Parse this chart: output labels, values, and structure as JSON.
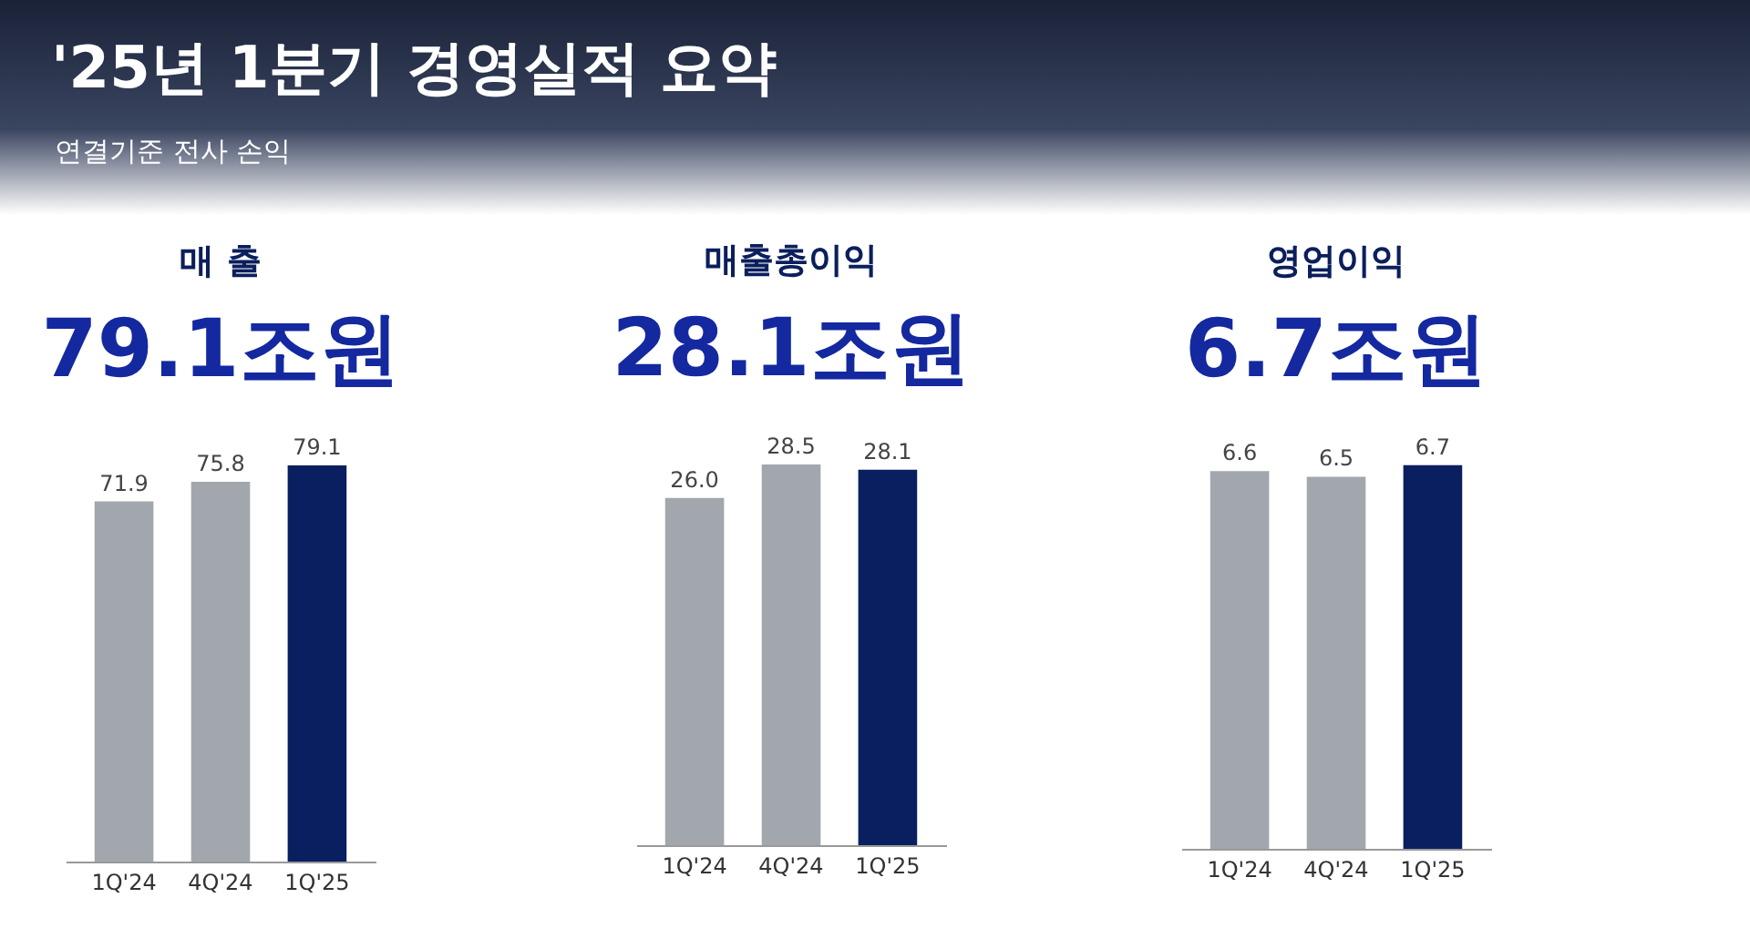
{
  "chart_data": [
    {
      "type": "other",
      "title": "'25년 1분기 경영실적 요약",
      "subtitle": "연결기준 전사 손익"
    },
    {
      "type": "bar",
      "title": "매 출",
      "subtitle": "79.1조원",
      "categories": [
        "1Q'24",
        "4Q'24",
        "1Q'25"
      ],
      "values": [
        71.9,
        75.8,
        79.1
      ],
      "colors": [
        "#a2a7ad",
        "#a2a7ad",
        "#0a1f5f"
      ],
      "value_labels": [
        "71.9",
        "75.8",
        "79.1"
      ]
    },
    {
      "type": "bar",
      "title": "매출총이익",
      "subtitle": "28.1조원",
      "categories": [
        "1Q'24",
        "4Q'24",
        "1Q'25"
      ],
      "values": [
        26.0,
        28.5,
        28.1
      ],
      "colors": [
        "#a2a7ad",
        "#a2a7ad",
        "#0a1f5f"
      ],
      "value_labels": [
        "26.0",
        "28.5",
        "28.1"
      ]
    },
    {
      "type": "bar",
      "title": "영업이익",
      "subtitle": "6.7조원",
      "categories": [
        "1Q'24",
        "4Q'24",
        "1Q'25"
      ],
      "values": [
        6.6,
        6.5,
        6.7
      ],
      "colors": [
        "#a2a7ad",
        "#a2a7ad",
        "#0a1f5f"
      ],
      "value_labels": [
        "6.6",
        "6.5",
        "6.7"
      ]
    }
  ]
}
